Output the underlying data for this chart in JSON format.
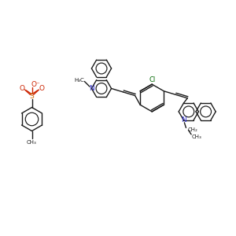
{
  "bg": "#ffffff",
  "bc": "#1a1a1a",
  "nc": "#3333cc",
  "oc": "#cc2200",
  "sc": "#cc6600",
  "clc": "#006600",
  "lw": 1.0,
  "fs": 5.5,
  "figsize": [
    3.0,
    3.0
  ],
  "dpi": 100,
  "xlim": [
    0,
    10
  ],
  "ylim": [
    0,
    10
  ]
}
